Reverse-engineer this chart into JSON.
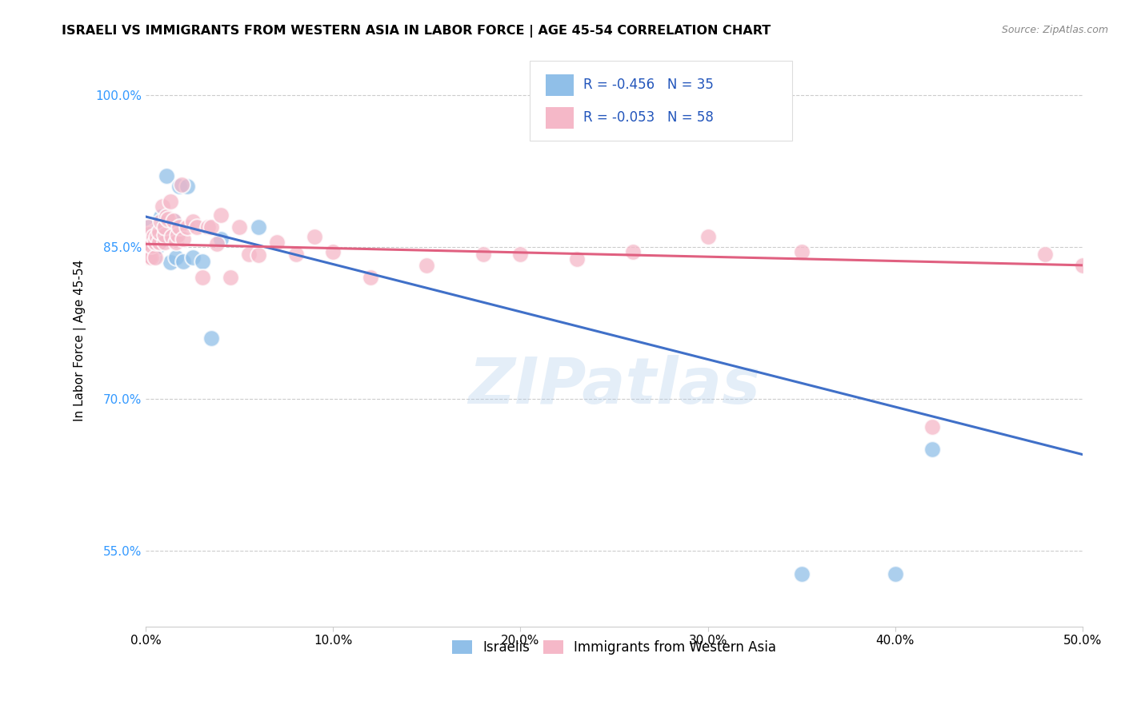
{
  "title": "ISRAELI VS IMMIGRANTS FROM WESTERN ASIA IN LABOR FORCE | AGE 45-54 CORRELATION CHART",
  "source": "Source: ZipAtlas.com",
  "ylabel": "In Labor Force | Age 45-54",
  "xlim": [
    0.0,
    0.5
  ],
  "ylim": [
    0.475,
    1.04
  ],
  "xticks": [
    0.0,
    0.1,
    0.2,
    0.3,
    0.4,
    0.5
  ],
  "xtick_labels": [
    "0.0%",
    "10.0%",
    "20.0%",
    "30.0%",
    "40.0%",
    "50.0%"
  ],
  "yticks": [
    0.55,
    0.7,
    0.85,
    1.0
  ],
  "ytick_labels": [
    "55.0%",
    "70.0%",
    "85.0%",
    "100.0%"
  ],
  "grid_color": "#cccccc",
  "background_color": "#ffffff",
  "watermark": "ZIPatlas",
  "watermark_color": "#a8c8e8",
  "legend_r_blue": "R = -0.456",
  "legend_n_blue": "N = 35",
  "legend_r_pink": "R = -0.053",
  "legend_n_pink": "N = 58",
  "legend_label_blue": "Israelis",
  "legend_label_pink": "Immigrants from Western Asia",
  "blue_color": "#90bfe8",
  "pink_color": "#f5b8c8",
  "blue_line_color": "#4070c8",
  "pink_line_color": "#e06080",
  "blue_line_x0": 0.0,
  "blue_line_y0": 0.88,
  "blue_line_x1": 0.5,
  "blue_line_y1": 0.645,
  "pink_line_x0": 0.0,
  "pink_line_y0": 0.853,
  "pink_line_x1": 0.5,
  "pink_line_y1": 0.832,
  "israelis_x": [
    0.001,
    0.001,
    0.001,
    0.003,
    0.003,
    0.004,
    0.004,
    0.004,
    0.004,
    0.005,
    0.006,
    0.006,
    0.007,
    0.007,
    0.008,
    0.009,
    0.009,
    0.01,
    0.01,
    0.011,
    0.012,
    0.013,
    0.015,
    0.016,
    0.018,
    0.02,
    0.022,
    0.025,
    0.03,
    0.035,
    0.04,
    0.06,
    0.35,
    0.4,
    0.42
  ],
  "israelis_y": [
    0.855,
    0.862,
    0.87,
    0.845,
    0.855,
    0.84,
    0.848,
    0.858,
    0.865,
    0.855,
    0.85,
    0.86,
    0.855,
    0.87,
    0.88,
    0.862,
    0.87,
    0.858,
    0.866,
    0.92,
    0.875,
    0.835,
    0.876,
    0.84,
    0.91,
    0.836,
    0.91,
    0.84,
    0.836,
    0.76,
    0.858,
    0.87,
    0.527,
    0.527,
    0.65
  ],
  "immigrants_x": [
    0.001,
    0.001,
    0.001,
    0.001,
    0.001,
    0.001,
    0.002,
    0.002,
    0.003,
    0.003,
    0.004,
    0.005,
    0.005,
    0.006,
    0.007,
    0.007,
    0.008,
    0.009,
    0.01,
    0.01,
    0.01,
    0.011,
    0.012,
    0.013,
    0.014,
    0.015,
    0.016,
    0.017,
    0.018,
    0.019,
    0.02,
    0.022,
    0.025,
    0.027,
    0.03,
    0.033,
    0.035,
    0.038,
    0.04,
    0.045,
    0.05,
    0.055,
    0.06,
    0.07,
    0.08,
    0.09,
    0.1,
    0.12,
    0.15,
    0.18,
    0.2,
    0.23,
    0.26,
    0.3,
    0.35,
    0.42,
    0.48,
    0.5
  ],
  "immigrants_y": [
    0.84,
    0.845,
    0.852,
    0.858,
    0.863,
    0.87,
    0.84,
    0.853,
    0.84,
    0.852,
    0.86,
    0.84,
    0.855,
    0.86,
    0.855,
    0.865,
    0.875,
    0.89,
    0.855,
    0.862,
    0.87,
    0.88,
    0.878,
    0.895,
    0.86,
    0.876,
    0.855,
    0.862,
    0.87,
    0.912,
    0.858,
    0.87,
    0.875,
    0.87,
    0.82,
    0.87,
    0.87,
    0.853,
    0.882,
    0.82,
    0.87,
    0.843,
    0.842,
    0.855,
    0.843,
    0.86,
    0.845,
    0.82,
    0.832,
    0.843,
    0.843,
    0.838,
    0.845,
    0.86,
    0.845,
    0.672,
    0.843,
    0.832
  ]
}
